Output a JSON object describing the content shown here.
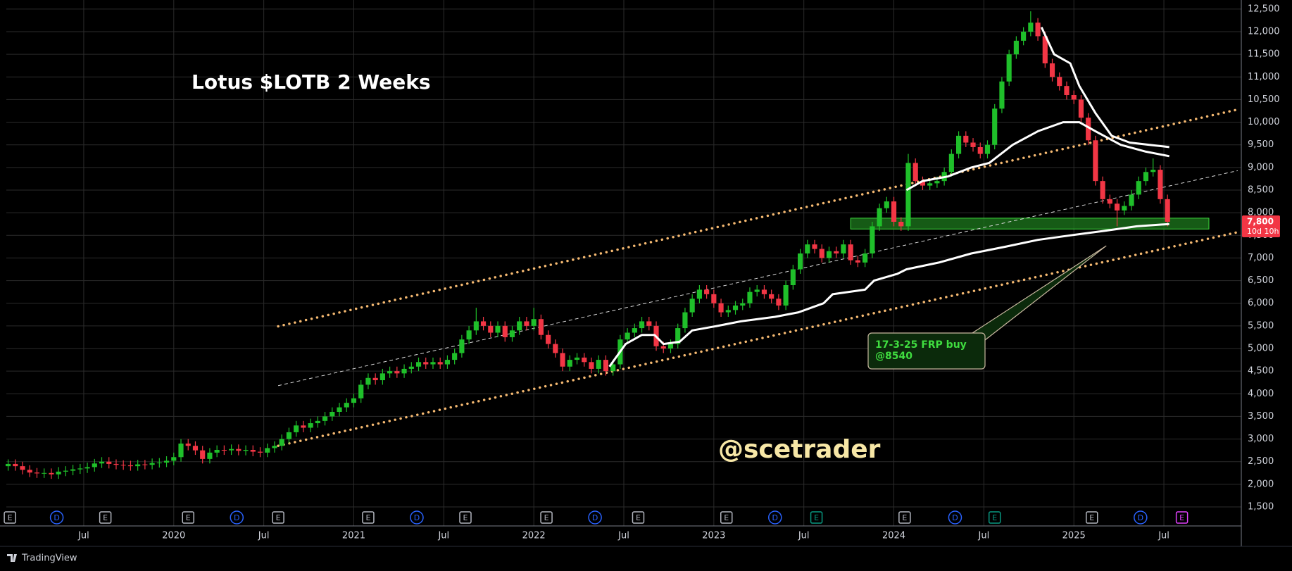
{
  "chart_data": {
    "type": "candlestick",
    "title": "Lotus $LOTB 2 Weeks",
    "watermark": "@scetrader",
    "up_color": "#1fbf2a",
    "down_color": "#f23645",
    "grid": true,
    "xlim": [
      2019.07,
      2025.93
    ],
    "ylim": [
      1080,
      12700
    ],
    "yticks": [
      {
        "value": 1500,
        "label": "1,500"
      },
      {
        "value": 2000,
        "label": "2,000"
      },
      {
        "value": 2500,
        "label": "2,500"
      },
      {
        "value": 3000,
        "label": "3,000"
      },
      {
        "value": 3500,
        "label": "3,500"
      },
      {
        "value": 4000,
        "label": "4,000"
      },
      {
        "value": 4500,
        "label": "4,500"
      },
      {
        "value": 5000,
        "label": "5,000"
      },
      {
        "value": 5500,
        "label": "5,500"
      },
      {
        "value": 6000,
        "label": "6,000"
      },
      {
        "value": 6500,
        "label": "6,500"
      },
      {
        "value": 7000,
        "label": "7,000"
      },
      {
        "value": 7500,
        "label": "7,500"
      },
      {
        "value": 8000,
        "label": "8,000"
      },
      {
        "value": 8500,
        "label": "8,500"
      },
      {
        "value": 9000,
        "label": "9,000"
      },
      {
        "value": 9500,
        "label": "9,500"
      },
      {
        "value": 10000,
        "label": "10,000"
      },
      {
        "value": 10500,
        "label": "10,500"
      },
      {
        "value": 11000,
        "label": "11,000"
      },
      {
        "value": 11500,
        "label": "11,500"
      },
      {
        "value": 12000,
        "label": "12,000"
      },
      {
        "value": 12500,
        "label": "12,500"
      }
    ],
    "xticks": [
      {
        "value": 2019.5,
        "label": "Jul"
      },
      2020,
      {
        "value": 2020.5,
        "label": "Jul"
      },
      2021,
      {
        "value": 2021.5,
        "label": "Jul"
      },
      2022,
      {
        "value": 2022.5,
        "label": "Jul"
      },
      2023,
      {
        "value": 2023.5,
        "label": "Jul"
      },
      2024,
      {
        "value": 2024.5,
        "label": "Jul"
      },
      2025,
      {
        "value": 2025.5,
        "label": "Jul"
      }
    ],
    "x": [
      2019.08,
      2019.12,
      2019.16,
      2019.2,
      2019.24,
      2019.28,
      2019.32,
      2019.36,
      2019.4,
      2019.44,
      2019.48,
      2019.52,
      2019.56,
      2019.6,
      2019.64,
      2019.68,
      2019.72,
      2019.76,
      2019.8,
      2019.84,
      2019.88,
      2019.92,
      2019.96,
      2020.0,
      2020.04,
      2020.08,
      2020.12,
      2020.16,
      2020.2,
      2020.24,
      2020.28,
      2020.32,
      2020.36,
      2020.4,
      2020.44,
      2020.48,
      2020.52,
      2020.56,
      2020.6,
      2020.64,
      2020.68,
      2020.72,
      2020.76,
      2020.8,
      2020.84,
      2020.88,
      2020.92,
      2020.96,
      2021.0,
      2021.04,
      2021.08,
      2021.12,
      2021.16,
      2021.2,
      2021.24,
      2021.28,
      2021.32,
      2021.36,
      2021.4,
      2021.44,
      2021.48,
      2021.52,
      2021.56,
      2021.6,
      2021.64,
      2021.68,
      2021.72,
      2021.76,
      2021.8,
      2021.84,
      2021.88,
      2021.92,
      2021.96,
      2022.0,
      2022.04,
      2022.08,
      2022.12,
      2022.16,
      2022.2,
      2022.24,
      2022.28,
      2022.32,
      2022.36,
      2022.4,
      2022.44,
      2022.48,
      2022.52,
      2022.56,
      2022.6,
      2022.64,
      2022.68,
      2022.72,
      2022.76,
      2022.8,
      2022.84,
      2022.88,
      2022.92,
      2022.96,
      2023.0,
      2023.04,
      2023.08,
      2023.12,
      2023.16,
      2023.2,
      2023.24,
      2023.28,
      2023.32,
      2023.36,
      2023.4,
      2023.44,
      2023.48,
      2023.52,
      2023.56,
      2023.6,
      2023.64,
      2023.68,
      2023.72,
      2023.76,
      2023.8,
      2023.84,
      2023.88,
      2023.92,
      2023.96,
      2024.0,
      2024.04,
      2024.08,
      2024.12,
      2024.16,
      2024.2,
      2024.24,
      2024.28,
      2024.32,
      2024.36,
      2024.4,
      2024.44,
      2024.48,
      2024.52,
      2024.56,
      2024.6,
      2024.64,
      2024.68,
      2024.72,
      2024.76,
      2024.8,
      2024.84,
      2024.88,
      2024.92,
      2024.96,
      2025.0,
      2025.04,
      2025.08,
      2025.12,
      2025.16,
      2025.2,
      2025.24,
      2025.28,
      2025.32,
      2025.36,
      2025.4,
      2025.44,
      2025.48,
      2025.52
    ],
    "open": [
      2400,
      2450,
      2400,
      2320,
      2260,
      2240,
      2250,
      2220,
      2280,
      2300,
      2330,
      2350,
      2380,
      2460,
      2500,
      2450,
      2430,
      2420,
      2400,
      2440,
      2430,
      2470,
      2480,
      2520,
      2600,
      2900,
      2850,
      2750,
      2560,
      2700,
      2760,
      2750,
      2780,
      2740,
      2760,
      2720,
      2700,
      2800,
      2850,
      3000,
      3150,
      3300,
      3250,
      3350,
      3400,
      3500,
      3600,
      3700,
      3800,
      3900,
      4200,
      4350,
      4300,
      4450,
      4500,
      4450,
      4550,
      4600,
      4700,
      4650,
      4700,
      4650,
      4750,
      4900,
      5200,
      5400,
      5600,
      5500,
      5350,
      5500,
      5250,
      5400,
      5600,
      5500,
      5650,
      5300,
      5100,
      4900,
      4600,
      4750,
      4800,
      4700,
      4550,
      4750,
      4500,
      4650,
      5200,
      5350,
      5450,
      5600,
      5500,
      5050,
      5000,
      5100,
      5450,
      5800,
      6100,
      6300,
      6200,
      6000,
      5800,
      5850,
      5950,
      6000,
      6250,
      6300,
      6200,
      6100,
      5950,
      6400,
      6750,
      7100,
      7300,
      7200,
      7000,
      7150,
      7100,
      7300,
      6950,
      6900,
      7100,
      7700,
      8100,
      8250,
      7800,
      7700,
      9100,
      8700,
      8600,
      8650,
      8700,
      8900,
      9300,
      9700,
      9550,
      9450,
      9300,
      9500,
      10300,
      10900,
      11500,
      11800,
      12000,
      12200,
      11900,
      11300,
      11000,
      10800,
      10600,
      10500,
      10100,
      9600,
      8700,
      8300,
      8200,
      8050,
      8150,
      8400,
      8700,
      8900,
      8950,
      8300
    ],
    "high": [
      2550,
      2550,
      2500,
      2420,
      2360,
      2350,
      2350,
      2380,
      2400,
      2430,
      2450,
      2480,
      2560,
      2600,
      2600,
      2550,
      2530,
      2520,
      2540,
      2540,
      2570,
      2580,
      2620,
      2700,
      3000,
      3000,
      2950,
      2850,
      2800,
      2860,
      2860,
      2880,
      2880,
      2860,
      2860,
      2820,
      2900,
      2950,
      3100,
      3250,
      3400,
      3400,
      3450,
      3500,
      3600,
      3700,
      3800,
      3900,
      4000,
      4300,
      4450,
      4450,
      4550,
      4600,
      4600,
      4650,
      4700,
      4800,
      4800,
      4800,
      4800,
      4850,
      5000,
      5300,
      5500,
      5900,
      5700,
      5600,
      5600,
      5600,
      5500,
      5700,
      5700,
      5900,
      5750,
      5400,
      5200,
      5000,
      4850,
      4900,
      4900,
      4800,
      4850,
      4850,
      4750,
      5300,
      5450,
      5550,
      5700,
      5700,
      5600,
      5150,
      5200,
      5550,
      5900,
      6200,
      6400,
      6400,
      6300,
      6100,
      5950,
      6050,
      6100,
      6350,
      6400,
      6400,
      6300,
      6200,
      6500,
      6850,
      7200,
      7400,
      7400,
      7300,
      7250,
      7250,
      7400,
      7400,
      7050,
      7200,
      7800,
      8200,
      8350,
      8350,
      7900,
      9300,
      9200,
      8800,
      8750,
      8800,
      9000,
      9400,
      9800,
      9800,
      9650,
      9550,
      9600,
      10400,
      11000,
      11600,
      11900,
      12100,
      12450,
      12300,
      12000,
      11400,
      11100,
      10900,
      10700,
      10600,
      10200,
      9700,
      8800,
      8400,
      8300,
      8250,
      8500,
      8800,
      9000,
      9200,
      9050,
      8400
    ],
    "low": [
      2300,
      2300,
      2220,
      2160,
      2140,
      2140,
      2120,
      2120,
      2180,
      2200,
      2230,
      2250,
      2280,
      2360,
      2350,
      2330,
      2320,
      2300,
      2300,
      2330,
      2330,
      2370,
      2380,
      2420,
      2500,
      2750,
      2650,
      2460,
      2460,
      2600,
      2650,
      2650,
      2640,
      2640,
      2620,
      2600,
      2600,
      2700,
      2750,
      2900,
      3050,
      3150,
      3150,
      3250,
      3300,
      3400,
      3500,
      3600,
      3700,
      3800,
      4100,
      4200,
      4200,
      4350,
      4350,
      4350,
      4450,
      4500,
      4550,
      4550,
      4550,
      4550,
      4650,
      4800,
      5100,
      5300,
      5400,
      5250,
      5250,
      5150,
      5150,
      5300,
      5400,
      5400,
      5200,
      5000,
      4800,
      4500,
      4500,
      4650,
      4600,
      4450,
      4450,
      4400,
      4400,
      4550,
      5100,
      5250,
      5350,
      5400,
      4950,
      4900,
      4900,
      5000,
      5350,
      5700,
      6000,
      6100,
      5900,
      5700,
      5700,
      5750,
      5850,
      5900,
      6150,
      6100,
      6000,
      5850,
      5850,
      6300,
      6650,
      7000,
      7100,
      6900,
      6900,
      7000,
      7000,
      6850,
      6800,
      6800,
      7000,
      7600,
      8000,
      7700,
      7600,
      7600,
      8600,
      8500,
      8500,
      8550,
      8600,
      8800,
      9200,
      9450,
      9350,
      9200,
      9200,
      9400,
      10200,
      10800,
      11400,
      11700,
      11900,
      11800,
      11200,
      10900,
      10700,
      10500,
      10400,
      10000,
      9500,
      8600,
      8200,
      8100,
      7700,
      7950,
      8050,
      8300,
      8600,
      8800,
      8200,
      7700
    ],
    "close": [
      2450,
      2400,
      2320,
      2260,
      2240,
      2250,
      2220,
      2280,
      2300,
      2330,
      2350,
      2380,
      2460,
      2500,
      2450,
      2430,
      2420,
      2400,
      2440,
      2430,
      2470,
      2480,
      2520,
      2600,
      2900,
      2850,
      2750,
      2560,
      2700,
      2760,
      2750,
      2780,
      2740,
      2760,
      2720,
      2700,
      2800,
      2850,
      3000,
      3150,
      3300,
      3250,
      3350,
      3400,
      3500,
      3600,
      3700,
      3800,
      3900,
      4200,
      4350,
      4300,
      4450,
      4500,
      4450,
      4550,
      4600,
      4700,
      4650,
      4700,
      4650,
      4750,
      4900,
      5200,
      5400,
      5600,
      5500,
      5350,
      5500,
      5250,
      5400,
      5600,
      5500,
      5650,
      5300,
      5100,
      4900,
      4600,
      4750,
      4800,
      4700,
      4550,
      4750,
      4500,
      4650,
      5200,
      5350,
      5450,
      5600,
      5500,
      5050,
      5000,
      5100,
      5450,
      5800,
      6100,
      6300,
      6200,
      6000,
      5800,
      5850,
      5950,
      6000,
      6250,
      6300,
      6200,
      6100,
      5950,
      6400,
      6750,
      7100,
      7300,
      7200,
      7000,
      7150,
      7100,
      7300,
      6950,
      6900,
      7100,
      7700,
      8100,
      8250,
      7800,
      7700,
      9100,
      8700,
      8600,
      8650,
      8700,
      8900,
      9300,
      9700,
      9550,
      9450,
      9300,
      9500,
      10300,
      10900,
      11500,
      11800,
      12000,
      12200,
      11900,
      11300,
      11000,
      10800,
      10600,
      10500,
      10100,
      9600,
      8700,
      8300,
      8200,
      8050,
      8150,
      8400,
      8700,
      8900,
      8950,
      8300,
      7800
    ],
    "moving_averages": [
      {
        "color": "#ffffff",
        "x": [
          2022.42,
          2022.51,
          2022.6,
          2022.67,
          2022.72,
          2022.81,
          2022.88,
          2023.02,
          2023.15,
          2023.34,
          2023.47,
          2023.61,
          2023.66,
          2023.84,
          2023.89,
          2024.02,
          2024.07,
          2024.25,
          2024.43,
          2024.62,
          2024.8,
          2024.98,
          2025.17,
          2025.35,
          2025.53
        ],
        "values": [
          4600,
          5100,
          5300,
          5300,
          5100,
          5150,
          5400,
          5500,
          5600,
          5700,
          5800,
          6000,
          6200,
          6300,
          6500,
          6650,
          6750,
          6900,
          7100,
          7250,
          7400,
          7500,
          7600,
          7700,
          7750
        ]
      },
      {
        "color": "#ffffff",
        "x": [
          2024.07,
          2024.16,
          2024.3,
          2024.43,
          2024.53,
          2024.66,
          2024.8,
          2024.94,
          2025.03,
          2025.12,
          2025.26,
          2025.4,
          2025.53
        ],
        "values": [
          8500,
          8700,
          8800,
          9000,
          9100,
          9500,
          9800,
          10000,
          10000,
          9800,
          9500,
          9350,
          9250
        ]
      },
      {
        "color": "#ffffff",
        "x": [
          2024.82,
          2024.89,
          2024.98,
          2025.03,
          2025.12,
          2025.21,
          2025.31,
          2025.42,
          2025.53
        ],
        "values": [
          12100,
          11500,
          11300,
          10800,
          10200,
          9700,
          9550,
          9500,
          9450
        ]
      }
    ],
    "trendlines": [
      {
        "style": "dotted",
        "color": "#f5b971",
        "x": [
          2020.58,
          2025.91
        ],
        "values": [
          5490,
          10280
        ]
      },
      {
        "style": "dotted",
        "color": "#f5b971",
        "x": [
          2020.58,
          2025.91
        ],
        "values": [
          2850,
          7570
        ]
      },
      {
        "style": "dashed",
        "color": "#d8d8d8",
        "x": [
          2020.58,
          2025.91
        ],
        "values": [
          4180,
          8930
        ]
      }
    ],
    "zone": {
      "x": [
        2023.76,
        2025.75
      ],
      "values": [
        7640,
        7880
      ],
      "color": "#1d7a1d"
    },
    "annotation": {
      "lines": [
        "17-3-25 FRP buy",
        "@8540"
      ],
      "x": 2025.18,
      "value": 7270
    },
    "last_price": {
      "value": 7800,
      "label": "7,800"
    },
    "countdown": "10d 10h",
    "events": [
      {
        "x": 2019.09,
        "label": "E",
        "color": "#b2b5be"
      },
      {
        "x": 2019.35,
        "label": "D",
        "color": "#2962ff"
      },
      {
        "x": 2019.62,
        "label": "E",
        "color": "#b2b5be"
      },
      {
        "x": 2020.08,
        "label": "E",
        "color": "#b2b5be"
      },
      {
        "x": 2020.35,
        "label": "D",
        "color": "#2962ff"
      },
      {
        "x": 2020.58,
        "label": "E",
        "color": "#b2b5be"
      },
      {
        "x": 2021.08,
        "label": "E",
        "color": "#b2b5be"
      },
      {
        "x": 2021.35,
        "label": "D",
        "color": "#2962ff"
      },
      {
        "x": 2021.62,
        "label": "E",
        "color": "#b2b5be"
      },
      {
        "x": 2022.07,
        "label": "E",
        "color": "#b2b5be"
      },
      {
        "x": 2022.34,
        "label": "D",
        "color": "#2962ff"
      },
      {
        "x": 2022.58,
        "label": "E",
        "color": "#b2b5be"
      },
      {
        "x": 2023.07,
        "label": "E",
        "color": "#b2b5be"
      },
      {
        "x": 2023.34,
        "label": "D",
        "color": "#2962ff"
      },
      {
        "x": 2023.57,
        "label": "E",
        "color": "#089981"
      },
      {
        "x": 2024.06,
        "label": "E",
        "color": "#b2b5be"
      },
      {
        "x": 2024.34,
        "label": "D",
        "color": "#2962ff"
      },
      {
        "x": 2024.56,
        "label": "E",
        "color": "#089981"
      },
      {
        "x": 2025.1,
        "label": "E",
        "color": "#b2b5be"
      },
      {
        "x": 2025.37,
        "label": "D",
        "color": "#2962ff"
      },
      {
        "x": 2025.6,
        "label": "E",
        "color": "#e040fb"
      }
    ]
  },
  "footer": {
    "brand": "TradingView"
  }
}
